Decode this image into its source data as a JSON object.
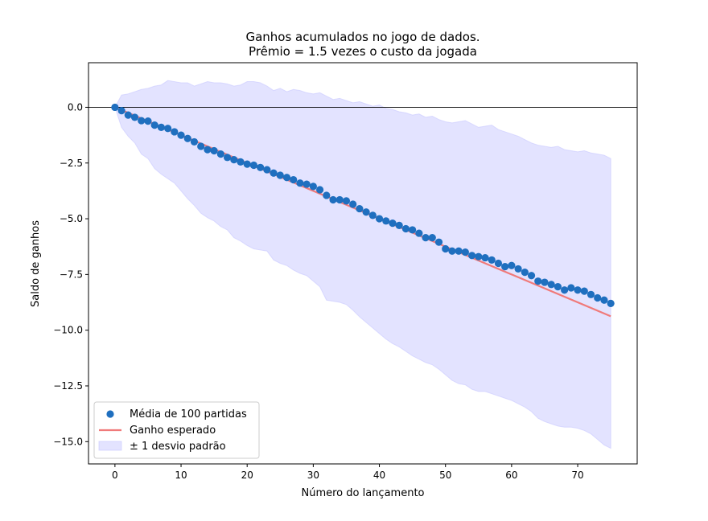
{
  "chart_data": {
    "type": "scatter",
    "title": [
      "Ganhos acumulados no jogo de dados.",
      "Prêmio = 1.5 vezes o custo da jogada"
    ],
    "xlabel": "Número do lançamento",
    "ylabel": "Saldo de ganhos",
    "xlim": [
      -4,
      79
    ],
    "ylim": [
      -16.0,
      2.0
    ],
    "xticks": [
      0,
      10,
      20,
      30,
      40,
      50,
      60,
      70
    ],
    "xtick_labels": [
      "0",
      "10",
      "20",
      "30",
      "40",
      "50",
      "60",
      "70"
    ],
    "yticks": [
      0.0,
      -2.5,
      -5.0,
      -7.5,
      -10.0,
      -12.5,
      -15.0
    ],
    "ytick_labels": [
      "0.0",
      "−2.5",
      "−5.0",
      "−7.5",
      "−10.0",
      "−12.5",
      "−15.0"
    ],
    "grid": false,
    "legend_position": "lower-left",
    "reference_line_y": 0,
    "series": [
      {
        "name": "Média de 100 partidas",
        "kind": "scatter",
        "color": "#1f6fbf",
        "x": [
          0,
          1,
          2,
          3,
          4,
          5,
          6,
          7,
          8,
          9,
          10,
          11,
          12,
          13,
          14,
          15,
          16,
          17,
          18,
          19,
          20,
          21,
          22,
          23,
          24,
          25,
          26,
          27,
          28,
          29,
          30,
          31,
          32,
          33,
          34,
          35,
          36,
          37,
          38,
          39,
          40,
          41,
          42,
          43,
          44,
          45,
          46,
          47,
          48,
          49,
          50,
          51,
          52,
          53,
          54,
          55,
          56,
          57,
          58,
          59,
          60,
          61,
          62,
          63,
          64,
          65,
          66,
          67,
          68,
          69,
          70,
          71,
          72,
          73,
          74,
          75
        ],
        "y": [
          0.0,
          -0.15,
          -0.35,
          -0.45,
          -0.6,
          -0.62,
          -0.8,
          -0.9,
          -0.95,
          -1.1,
          -1.25,
          -1.4,
          -1.55,
          -1.75,
          -1.9,
          -1.95,
          -2.1,
          -2.25,
          -2.35,
          -2.45,
          -2.55,
          -2.6,
          -2.7,
          -2.8,
          -2.95,
          -3.05,
          -3.15,
          -3.25,
          -3.4,
          -3.45,
          -3.55,
          -3.7,
          -3.95,
          -4.15,
          -4.15,
          -4.2,
          -4.35,
          -4.55,
          -4.7,
          -4.85,
          -5.0,
          -5.1,
          -5.2,
          -5.3,
          -5.45,
          -5.5,
          -5.65,
          -5.85,
          -5.85,
          -6.05,
          -6.35,
          -6.45,
          -6.45,
          -6.5,
          -6.65,
          -6.7,
          -6.75,
          -6.85,
          -7.0,
          -7.15,
          -7.1,
          -7.25,
          -7.4,
          -7.55,
          -7.8,
          -7.85,
          -7.95,
          -8.05,
          -8.2,
          -8.1,
          -8.2,
          -8.25,
          -8.4,
          -8.55,
          -8.65,
          -8.8
        ]
      },
      {
        "name": "Ganho esperado",
        "kind": "line",
        "color": "#f07a7a",
        "x": [
          0,
          75
        ],
        "y": [
          0.0,
          -9.375
        ]
      },
      {
        "name": "± 1 desvio padrão",
        "kind": "band",
        "color": "#c8c8ff",
        "opacity": 0.5,
        "x": [
          0,
          1,
          2,
          3,
          4,
          5,
          6,
          7,
          8,
          9,
          10,
          11,
          12,
          13,
          14,
          15,
          16,
          17,
          18,
          19,
          20,
          21,
          22,
          23,
          24,
          25,
          26,
          27,
          28,
          29,
          30,
          31,
          32,
          33,
          34,
          35,
          36,
          37,
          38,
          39,
          40,
          41,
          42,
          43,
          44,
          45,
          46,
          47,
          48,
          49,
          50,
          51,
          52,
          53,
          54,
          55,
          56,
          57,
          58,
          59,
          60,
          61,
          62,
          63,
          64,
          65,
          66,
          67,
          68,
          69,
          70,
          71,
          72,
          73,
          74,
          75
        ],
        "upper": [
          0.0,
          0.55,
          0.6,
          0.7,
          0.8,
          0.85,
          0.95,
          1.0,
          1.2,
          1.15,
          1.1,
          1.1,
          0.95,
          1.05,
          1.15,
          1.1,
          1.1,
          1.05,
          0.95,
          1.0,
          1.15,
          1.15,
          1.1,
          0.95,
          0.75,
          0.85,
          0.7,
          0.8,
          0.75,
          0.65,
          0.6,
          0.65,
          0.5,
          0.35,
          0.4,
          0.3,
          0.2,
          0.25,
          0.15,
          0.05,
          0.1,
          -0.05,
          -0.1,
          -0.2,
          -0.25,
          -0.35,
          -0.3,
          -0.45,
          -0.4,
          -0.55,
          -0.65,
          -0.7,
          -0.65,
          -0.6,
          -0.75,
          -0.9,
          -0.85,
          -0.8,
          -1.0,
          -1.1,
          -1.2,
          -1.3,
          -1.45,
          -1.6,
          -1.7,
          -1.75,
          -1.8,
          -1.75,
          -1.9,
          -1.95,
          -2.0,
          -1.95,
          -2.05,
          -2.1,
          -2.15,
          -2.3
        ],
        "lower": [
          0.0,
          -0.9,
          -1.3,
          -1.6,
          -2.1,
          -2.3,
          -2.75,
          -3.0,
          -3.2,
          -3.4,
          -3.75,
          -4.1,
          -4.4,
          -4.75,
          -4.95,
          -5.1,
          -5.35,
          -5.5,
          -5.85,
          -6.0,
          -6.2,
          -6.35,
          -6.4,
          -6.45,
          -6.85,
          -7.0,
          -7.1,
          -7.3,
          -7.45,
          -7.55,
          -7.8,
          -8.05,
          -8.65,
          -8.7,
          -8.75,
          -8.85,
          -9.1,
          -9.4,
          -9.65,
          -9.9,
          -10.15,
          -10.4,
          -10.6,
          -10.75,
          -10.95,
          -11.15,
          -11.3,
          -11.45,
          -11.55,
          -11.75,
          -12.0,
          -12.25,
          -12.4,
          -12.45,
          -12.65,
          -12.75,
          -12.75,
          -12.85,
          -12.95,
          -13.05,
          -13.15,
          -13.3,
          -13.45,
          -13.65,
          -13.95,
          -14.1,
          -14.2,
          -14.3,
          -14.35,
          -14.35,
          -14.4,
          -14.5,
          -14.65,
          -14.9,
          -15.15,
          -15.3
        ]
      }
    ]
  }
}
